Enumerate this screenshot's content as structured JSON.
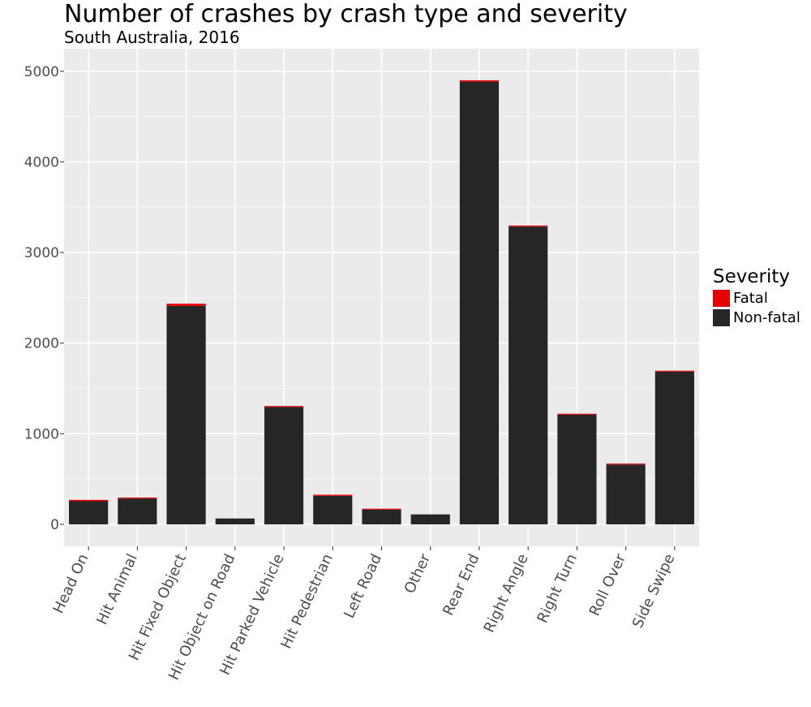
{
  "chart_data": {
    "type": "bar",
    "stacked": true,
    "title": "Number of crashes by crash type and severity",
    "subtitle": "South Australia, 2016",
    "xlabel": "",
    "ylabel": "",
    "ylim": [
      0,
      5200
    ],
    "yticks": [
      0,
      1000,
      2000,
      3000,
      4000,
      5000
    ],
    "grid": true,
    "legend": {
      "title": "Severity",
      "placement": "right"
    },
    "categories": [
      "Head On",
      "Hit Animal",
      "Hit Fixed Object",
      "Hit Object on Road",
      "Hit Parked Vehicle",
      "Hit Pedestrian",
      "Left Road",
      "Other",
      "Rear End",
      "Right Angle",
      "Right Turn",
      "Roll Over",
      "Side Swipe"
    ],
    "series": [
      {
        "name": "Non-fatal",
        "color": "#262626",
        "values": [
          255,
          285,
          2410,
          65,
          1295,
          315,
          162,
          110,
          4885,
          3285,
          1210,
          660,
          1685
        ]
      },
      {
        "name": "Fatal",
        "color": "#e60000",
        "values": [
          15,
          3,
          25,
          0,
          4,
          12,
          3,
          0,
          15,
          12,
          3,
          5,
          2
        ]
      }
    ]
  }
}
